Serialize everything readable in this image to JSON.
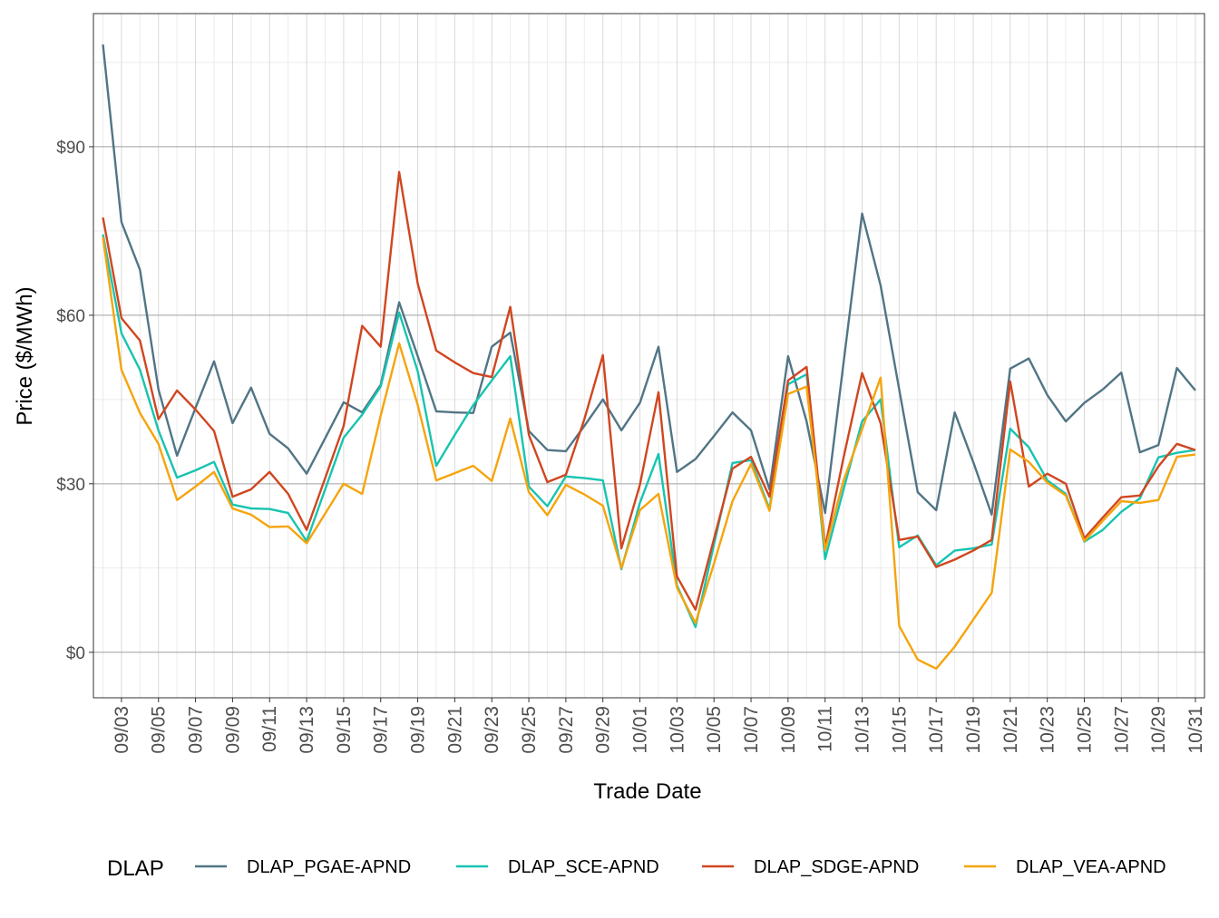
{
  "chart_data": {
    "type": "line",
    "x_label": "Trade Date",
    "y_label": "Price ($/MWh)",
    "legend_title": "DLAP",
    "legend_position": "bottom",
    "grid": true,
    "categories": [
      null,
      "09/03",
      null,
      "09/05",
      null,
      "09/07",
      null,
      "09/09",
      null,
      "09/11",
      null,
      "09/13",
      null,
      "09/15",
      null,
      "09/17",
      null,
      "09/19",
      null,
      "09/21",
      null,
      "09/23",
      null,
      "09/25",
      null,
      "09/27",
      null,
      "09/29",
      null,
      "10/01",
      null,
      "10/03",
      null,
      "10/05",
      null,
      "10/07",
      null,
      "10/09",
      null,
      "10/11",
      null,
      "10/13",
      null,
      "10/15",
      null,
      "10/17",
      null,
      "10/19",
      null,
      "10/21",
      null,
      "10/23",
      null,
      "10/25",
      null,
      "10/27",
      null,
      "10/29",
      null,
      "10/31"
    ],
    "ylim": [
      -8.1,
      113.7
    ],
    "yticks": [
      {
        "value": 0,
        "label": "$0"
      },
      {
        "value": 30,
        "label": "$30"
      },
      {
        "value": 60,
        "label": "$60"
      },
      {
        "value": 90,
        "label": "$90"
      }
    ],
    "series": [
      {
        "name": "DLAP_PGAE-APND",
        "color": "#517585",
        "values": [
          108.2,
          76.6,
          68.1,
          46.8,
          35.0,
          43.5,
          51.8,
          40.8,
          47.1,
          38.9,
          36.3,
          31.8,
          38.1,
          44.5,
          42.7,
          47.6,
          62.3,
          52.7,
          42.9,
          42.7,
          42.6,
          54.4,
          56.9,
          39.4,
          36.0,
          35.8,
          40.3,
          45.0,
          39.5,
          44.4,
          54.4,
          32.1,
          34.4,
          38.5,
          42.7,
          39.5,
          29.0,
          52.7,
          41.1,
          24.8,
          51.6,
          78.1,
          65.3,
          46.8,
          28.5,
          25.3,
          42.7,
          33.9,
          24.5,
          50.5,
          52.3,
          45.8,
          41.1,
          44.4,
          46.8,
          49.8,
          35.6,
          36.9,
          50.6,
          46.6
        ]
      },
      {
        "name": "DLAP_SCE-APND",
        "color": "#17c4b0",
        "values": [
          74.4,
          56.8,
          50.3,
          39.5,
          31.1,
          32.4,
          33.9,
          26.3,
          25.6,
          25.5,
          24.8,
          19.8,
          29.0,
          38.2,
          42.3,
          47.3,
          60.5,
          50.0,
          33.2,
          38.7,
          44.0,
          48.4,
          52.7,
          29.5,
          26.0,
          31.3,
          31.0,
          30.6,
          14.8,
          26.6,
          35.3,
          11.9,
          4.5,
          19.2,
          33.7,
          34.2,
          25.5,
          47.7,
          49.5,
          16.6,
          29.0,
          41.1,
          45.0,
          18.7,
          20.8,
          15.5,
          18.1,
          18.5,
          19.2,
          39.8,
          36.5,
          30.6,
          28.2,
          19.7,
          21.8,
          25.0,
          27.4,
          34.7,
          35.5,
          36.0
        ]
      },
      {
        "name": "DLAP_SDGE-APND",
        "color": "#d04620",
        "values": [
          77.4,
          59.5,
          55.5,
          41.5,
          46.6,
          43.2,
          39.4,
          27.7,
          29.0,
          32.1,
          28.2,
          21.8,
          31.0,
          40.3,
          58.1,
          54.4,
          85.5,
          65.6,
          53.7,
          51.6,
          49.7,
          49.0,
          61.5,
          38.7,
          30.3,
          31.6,
          41.5,
          52.9,
          18.5,
          29.8,
          46.3,
          13.5,
          7.6,
          20.2,
          32.7,
          34.8,
          27.7,
          48.4,
          50.8,
          18.7,
          34.7,
          49.7,
          40.8,
          20.0,
          20.6,
          15.2,
          16.5,
          18.1,
          20.0,
          48.2,
          29.5,
          31.8,
          30.0,
          20.3,
          24.0,
          27.6,
          27.9,
          33.1,
          37.1,
          36.0
        ]
      },
      {
        "name": "DLAP_VEA-APND",
        "color": "#f5a40c",
        "values": [
          73.9,
          50.3,
          42.6,
          37.1,
          27.1,
          29.5,
          32.1,
          25.6,
          24.5,
          22.3,
          22.4,
          19.4,
          24.7,
          30.0,
          28.2,
          42.1,
          55.0,
          44.0,
          30.6,
          31.9,
          33.2,
          30.5,
          41.6,
          28.5,
          24.4,
          29.8,
          28.1,
          26.1,
          15.0,
          25.3,
          28.2,
          11.5,
          5.2,
          15.8,
          26.9,
          33.5,
          25.2,
          46.0,
          47.3,
          18.2,
          30.6,
          39.7,
          48.9,
          4.7,
          -1.3,
          -2.9,
          1.0,
          5.8,
          10.6,
          36.1,
          33.9,
          30.2,
          27.9,
          19.8,
          23.4,
          26.9,
          26.6,
          27.1,
          34.8,
          35.2
        ]
      }
    ]
  }
}
